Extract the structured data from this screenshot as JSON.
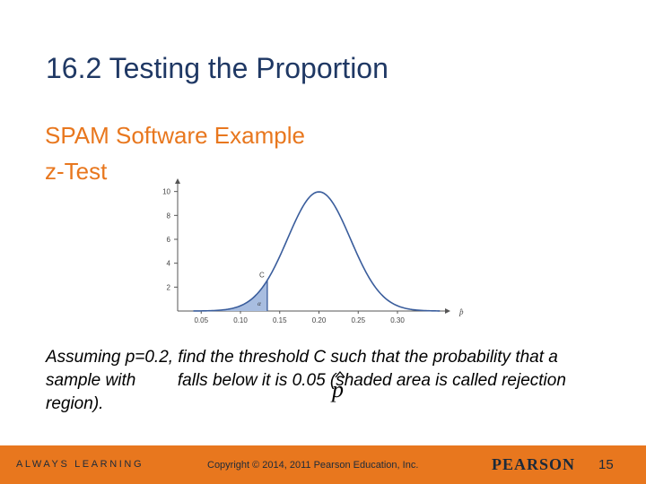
{
  "slide": {
    "title": "16.2 Testing the Proportion",
    "subtitle_line1": "SPAM Software Example",
    "subtitle_line2": "z-Test",
    "body_part1": "Assuming p=0.2, find the threshold C such that the probability that a sample with",
    "phat_symbol": "p̂",
    "body_part2": "falls below it is 0.05 (shaded area is called rejection region)."
  },
  "chart_data": {
    "type": "area",
    "distribution": "normal",
    "mean": 0.2,
    "sd": 0.04,
    "x_ticks": [
      "0.05",
      "0.10",
      "0.15",
      "0.20",
      "0.25",
      "0.30"
    ],
    "y_ticks": [
      "2",
      "4",
      "6",
      "8",
      "10"
    ],
    "xlim": [
      0.02,
      0.34
    ],
    "ylim": [
      0,
      10.5
    ],
    "xlabel": "p̂",
    "threshold_label": "C",
    "threshold": 0.1342,
    "region_label": "α",
    "shade_color": "#a8bde0",
    "curve_color": "#3a5d9c"
  },
  "footer": {
    "left_text": "ALWAYS LEARNING",
    "center_text": "Copyright © 2014, 2011 Pearson Education, Inc.",
    "logo_text": "PEARSON",
    "page_number": "15",
    "bar_color": "#e8771e"
  },
  "colors": {
    "title": "#1f3864",
    "subtitle": "#e8771e"
  }
}
